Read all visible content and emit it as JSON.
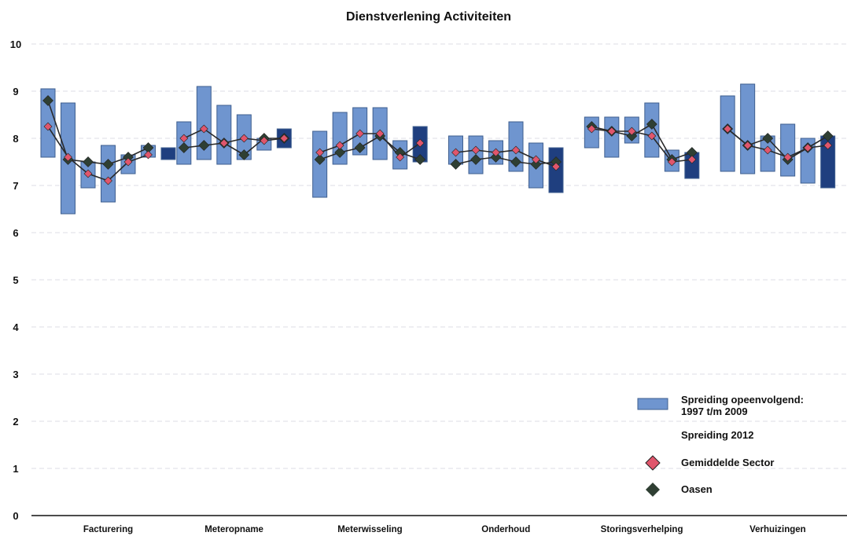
{
  "chart_data": {
    "type": "range-bar-with-lines",
    "title": "Dienstverlening Activiteiten",
    "xlabel": "",
    "ylabel": "",
    "ylim": [
      0,
      10
    ],
    "y_ticks": [
      "0",
      "1",
      "2",
      "3",
      "4",
      "5",
      "6",
      "7",
      "8",
      "9",
      "10"
    ],
    "grid": true,
    "legend_position": "bottom-right",
    "colors": {
      "spreiding_1997_2009": "#6f95cf",
      "spreiding_2012": "#1f3f7f",
      "gemiddelde_sector": "#e0566c",
      "oasen": "#2f3f33"
    },
    "categories": [
      "Facturering",
      "Meteropname",
      "Meterwisseling",
      "Onderhoud",
      "Storingsverhelping",
      "Verhuizingen"
    ],
    "legend": {
      "spreiding_line1": "Spreiding opeenvolgend:",
      "spreiding_line2": "1997 t/m 2009",
      "spreiding_2012": "Spreiding 2012",
      "gemiddelde_sector": "Gemiddelde Sector",
      "oasen": "Oasen"
    },
    "groups": [
      {
        "category": "Facturering",
        "ranges": [
          [
            7.6,
            9.05
          ],
          [
            6.4,
            8.75
          ],
          [
            6.95,
            7.5
          ],
          [
            6.65,
            7.85
          ],
          [
            7.25,
            7.65
          ],
          [
            7.6,
            7.85
          ]
        ],
        "range_2012": [
          7.55,
          7.8
        ],
        "gemiddelde_sector": [
          8.25,
          7.6,
          7.25,
          7.1,
          7.5,
          7.65
        ],
        "oasen": [
          8.8,
          7.55,
          7.5,
          7.45,
          7.6,
          7.8
        ]
      },
      {
        "category": "Meteropname",
        "ranges": [
          [
            7.45,
            8.35
          ],
          [
            7.55,
            9.1
          ],
          [
            7.45,
            8.7
          ],
          [
            7.55,
            8.5
          ],
          [
            7.75,
            8.0
          ]
        ],
        "range_2012": [
          7.8,
          8.2
        ],
        "gemiddelde_sector": [
          8.0,
          8.2,
          7.9,
          8.0,
          7.95,
          8.0
        ],
        "oasen": [
          7.8,
          7.85,
          7.9,
          7.65,
          8.0,
          8.0
        ]
      },
      {
        "category": "Meterwisseling",
        "ranges": [
          [
            6.75,
            8.15
          ],
          [
            7.45,
            8.55
          ],
          [
            7.65,
            8.65
          ],
          [
            7.55,
            8.65
          ],
          [
            7.35,
            7.95
          ]
        ],
        "range_2012": [
          7.5,
          8.25
        ],
        "gemiddelde_sector": [
          7.7,
          7.85,
          8.1,
          8.1,
          7.6,
          7.9
        ],
        "oasen": [
          7.55,
          7.7,
          7.8,
          8.05,
          7.7,
          7.55
        ]
      },
      {
        "category": "Onderhoud",
        "ranges": [
          [
            7.45,
            8.05
          ],
          [
            7.25,
            8.05
          ],
          [
            7.45,
            7.95
          ],
          [
            7.3,
            8.35
          ],
          [
            6.95,
            7.9
          ]
        ],
        "range_2012": [
          6.85,
          7.8
        ],
        "gemiddelde_sector": [
          7.7,
          7.75,
          7.7,
          7.75,
          7.55,
          7.4
        ],
        "oasen": [
          7.45,
          7.55,
          7.6,
          7.5,
          7.45,
          7.5
        ]
      },
      {
        "category": "Storingsverhelping",
        "ranges": [
          [
            7.8,
            8.45
          ],
          [
            7.6,
            8.45
          ],
          [
            7.9,
            8.45
          ],
          [
            7.6,
            8.75
          ],
          [
            7.3,
            7.75
          ]
        ],
        "range_2012": [
          7.15,
          7.7
        ],
        "gemiddelde_sector": [
          8.2,
          8.15,
          8.15,
          8.05,
          7.5,
          7.55
        ],
        "oasen": [
          8.25,
          8.15,
          8.05,
          8.3,
          7.55,
          7.7
        ]
      },
      {
        "category": "Verhuizingen",
        "ranges": [
          [
            7.3,
            8.9
          ],
          [
            7.25,
            9.15
          ],
          [
            7.3,
            8.05
          ],
          [
            7.2,
            8.3
          ],
          [
            7.05,
            8.0
          ]
        ],
        "range_2012": [
          6.95,
          8.05
        ],
        "gemiddelde_sector": [
          8.2,
          7.85,
          7.75,
          7.6,
          7.8,
          7.85
        ],
        "oasen": [
          8.2,
          7.85,
          8.0,
          7.55,
          7.8,
          8.05
        ]
      }
    ]
  }
}
